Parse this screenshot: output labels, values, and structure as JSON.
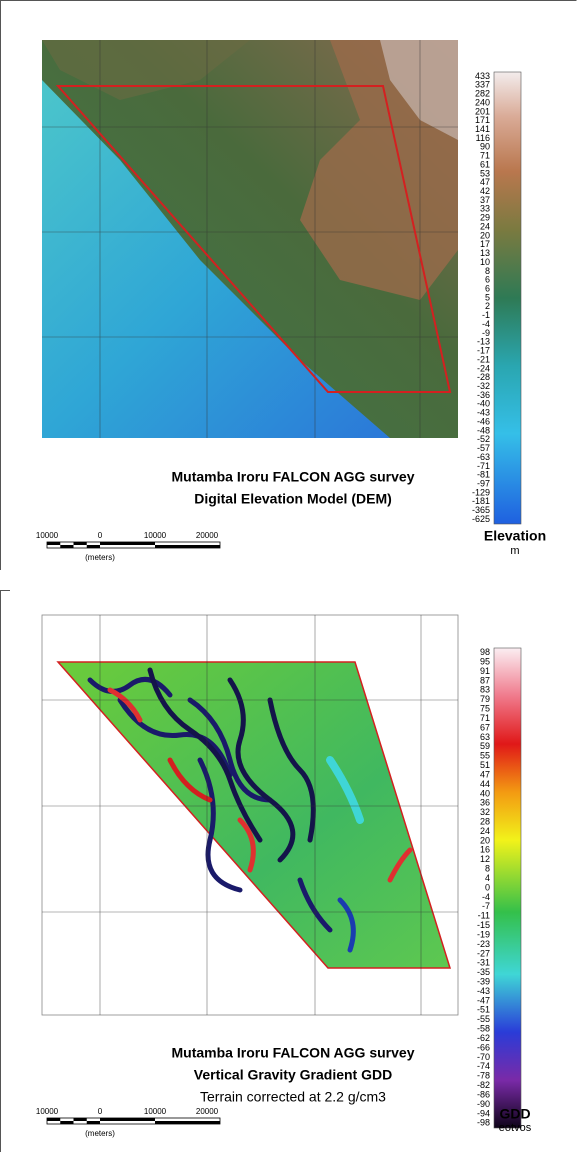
{
  "panels": [
    {
      "title_lines": [
        "Mutamba Iroru FALCON AGG survey",
        "Digital Elevation Model (DEM)"
      ],
      "legend": {
        "title": "Elevation",
        "unit": "m",
        "labels": [
          433,
          337,
          282,
          240,
          201,
          171,
          141,
          116,
          90,
          71,
          61,
          53,
          47,
          42,
          37,
          33,
          29,
          24,
          20,
          17,
          13,
          10,
          8,
          6,
          6,
          5,
          2,
          -1,
          -4,
          -9,
          -13,
          -17,
          -21,
          -24,
          -28,
          -32,
          -36,
          -40,
          -43,
          -46,
          -48,
          -52,
          -57,
          -63,
          -71,
          -81,
          -97,
          -129,
          -181,
          -365,
          -625
        ]
      },
      "scale": {
        "labels": [
          "10000",
          "0",
          "10000",
          "20000"
        ],
        "unit": "(meters)"
      }
    },
    {
      "title_lines": [
        "Mutamba Iroru FALCON AGG survey",
        "Vertical Gravity Gradient GDD",
        "Terrain corrected at 2.2 g/cm3"
      ],
      "legend": {
        "title": "GDD",
        "unit": "eotvos",
        "labels": [
          98,
          95,
          91,
          87,
          83,
          79,
          75,
          71,
          67,
          63,
          59,
          55,
          51,
          47,
          44,
          40,
          36,
          32,
          28,
          24,
          20,
          16,
          12,
          8,
          4,
          0,
          -4,
          -7,
          -11,
          -15,
          -19,
          -23,
          -27,
          -31,
          -35,
          -39,
          -43,
          -47,
          -51,
          -55,
          -58,
          -62,
          -66,
          -70,
          -74,
          -78,
          -82,
          -86,
          -90,
          -94,
          -98
        ]
      },
      "scale": {
        "labels": [
          "10000",
          "0",
          "10000",
          "20000"
        ],
        "unit": "(meters)"
      }
    }
  ]
}
